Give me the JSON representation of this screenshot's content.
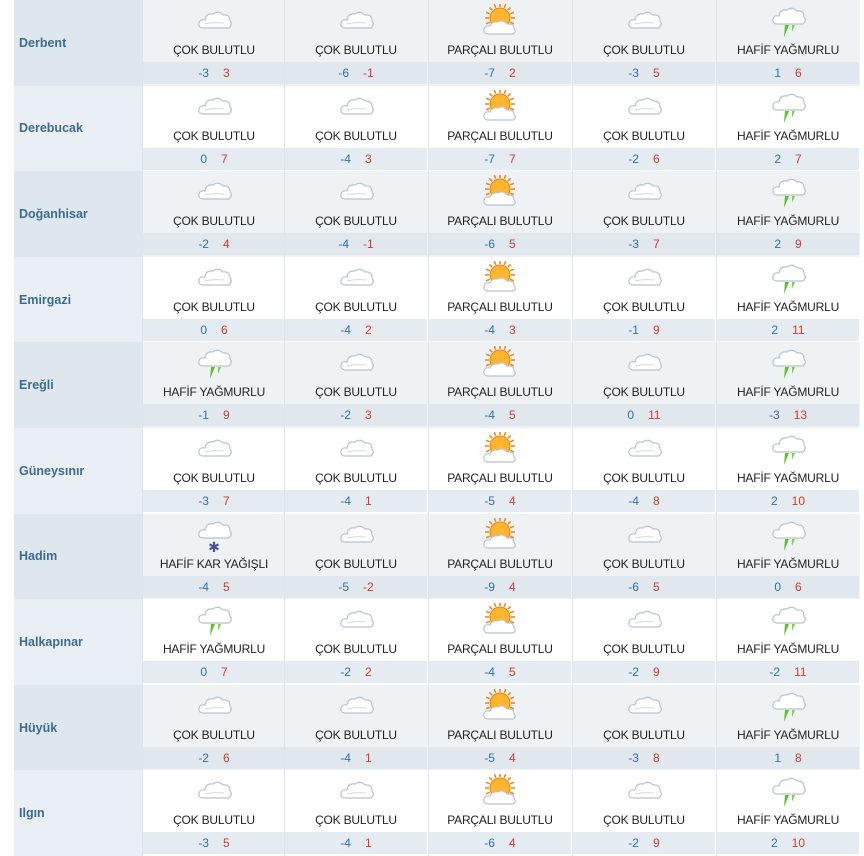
{
  "colors": {
    "min_temp": "#2f6fb5",
    "max_temp": "#d23a2e",
    "city": "#3d6b8f"
  },
  "conditions": {
    "cloudy": {
      "label": "ÇOK BULUTLU",
      "icon": "cloud-icon"
    },
    "partly": {
      "label": "PARÇALI BULUTLU",
      "icon": "sun-cloud-icon"
    },
    "rain": {
      "label": "HAFİF YAĞMURLU",
      "icon": "rain-cloud-icon"
    },
    "snow": {
      "label": "HAFİF KAR YAĞIŞLI",
      "icon": "snow-cloud-icon"
    }
  },
  "rows": [
    {
      "city": "Derbent",
      "days": [
        {
          "cond": "cloudy",
          "label": "ÇOK BULUTLU",
          "min": "-3",
          "max": "3"
        },
        {
          "cond": "cloudy",
          "label": "ÇOK BULUTLU",
          "min": "-6",
          "max": "-1"
        },
        {
          "cond": "partly",
          "label": "PARÇALI BULUTLU",
          "min": "-7",
          "max": "2"
        },
        {
          "cond": "cloudy",
          "label": "ÇOK BULUTLU",
          "min": "-3",
          "max": "5"
        },
        {
          "cond": "rain",
          "label": "HAFİF YAĞMURLU",
          "min": "1",
          "max": "6"
        }
      ]
    },
    {
      "city": "Derebucak",
      "days": [
        {
          "cond": "cloudy",
          "label": "ÇOK BULUTLU",
          "min": "0",
          "max": "7"
        },
        {
          "cond": "cloudy",
          "label": "ÇOK BULUTLU",
          "min": "-4",
          "max": "3"
        },
        {
          "cond": "partly",
          "label": "PARÇALI BULUTLU",
          "min": "-7",
          "max": "7"
        },
        {
          "cond": "cloudy",
          "label": "ÇOK BULUTLU",
          "min": "-2",
          "max": "6"
        },
        {
          "cond": "rain",
          "label": "HAFİF YAĞMURLU",
          "min": "2",
          "max": "7"
        }
      ]
    },
    {
      "city": "Doğanhisar",
      "days": [
        {
          "cond": "cloudy",
          "label": "ÇOK BULUTLU",
          "min": "-2",
          "max": "4"
        },
        {
          "cond": "cloudy",
          "label": "ÇOK BULUTLU",
          "min": "-4",
          "max": "-1"
        },
        {
          "cond": "partly",
          "label": "PARÇALI BULUTLU",
          "min": "-6",
          "max": "5"
        },
        {
          "cond": "cloudy",
          "label": "ÇOK BULUTLU",
          "min": "-3",
          "max": "7"
        },
        {
          "cond": "rain",
          "label": "HAFİF YAĞMURLU",
          "min": "2",
          "max": "9"
        }
      ]
    },
    {
      "city": "Emirgazi",
      "days": [
        {
          "cond": "cloudy",
          "label": "ÇOK BULUTLU",
          "min": "0",
          "max": "6"
        },
        {
          "cond": "cloudy",
          "label": "ÇOK BULUTLU",
          "min": "-4",
          "max": "2"
        },
        {
          "cond": "partly",
          "label": "PARÇALI BULUTLU",
          "min": "-4",
          "max": "3"
        },
        {
          "cond": "cloudy",
          "label": "ÇOK BULUTLU",
          "min": "-1",
          "max": "9"
        },
        {
          "cond": "rain",
          "label": "HAFİF YAĞMURLU",
          "min": "2",
          "max": "11"
        }
      ]
    },
    {
      "city": "Ereğli",
      "days": [
        {
          "cond": "rain",
          "label": "HAFİF YAĞMURLU",
          "min": "-1",
          "max": "9"
        },
        {
          "cond": "cloudy",
          "label": "ÇOK BULUTLU",
          "min": "-2",
          "max": "3"
        },
        {
          "cond": "partly",
          "label": "PARÇALI BULUTLU",
          "min": "-4",
          "max": "5"
        },
        {
          "cond": "cloudy",
          "label": "ÇOK BULUTLU",
          "min": "0",
          "max": "11"
        },
        {
          "cond": "rain",
          "label": "HAFİF YAĞMURLU",
          "min": "-3",
          "max": "13"
        }
      ]
    },
    {
      "city": "Güneysınır",
      "days": [
        {
          "cond": "cloudy",
          "label": "ÇOK BULUTLU",
          "min": "-3",
          "max": "7"
        },
        {
          "cond": "cloudy",
          "label": "ÇOK BULUTLU",
          "min": "-4",
          "max": "1"
        },
        {
          "cond": "partly",
          "label": "PARÇALI BULUTLU",
          "min": "-5",
          "max": "4"
        },
        {
          "cond": "cloudy",
          "label": "ÇOK BULUTLU",
          "min": "-4",
          "max": "8"
        },
        {
          "cond": "rain",
          "label": "HAFİF YAĞMURLU",
          "min": "2",
          "max": "10"
        }
      ]
    },
    {
      "city": "Hadim",
      "days": [
        {
          "cond": "snow",
          "label": "HAFİF KAR YAĞIŞLI",
          "min": "-4",
          "max": "5"
        },
        {
          "cond": "cloudy",
          "label": "ÇOK BULUTLU",
          "min": "-5",
          "max": "-2"
        },
        {
          "cond": "partly",
          "label": "PARÇALI BULUTLU",
          "min": "-9",
          "max": "4"
        },
        {
          "cond": "cloudy",
          "label": "ÇOK BULUTLU",
          "min": "-6",
          "max": "5"
        },
        {
          "cond": "rain",
          "label": "HAFİF YAĞMURLU",
          "min": "0",
          "max": "6"
        }
      ]
    },
    {
      "city": "Halkapınar",
      "days": [
        {
          "cond": "rain",
          "label": "HAFİF YAĞMURLU",
          "min": "0",
          "max": "7"
        },
        {
          "cond": "cloudy",
          "label": "ÇOK BULUTLU",
          "min": "-2",
          "max": "2"
        },
        {
          "cond": "partly",
          "label": "PARÇALI BULUTLU",
          "min": "-4",
          "max": "5"
        },
        {
          "cond": "cloudy",
          "label": "ÇOK BULUTLU",
          "min": "-2",
          "max": "9"
        },
        {
          "cond": "rain",
          "label": "HAFİF YAĞMURLU",
          "min": "-2",
          "max": "11"
        }
      ]
    },
    {
      "city": "Hüyük",
      "days": [
        {
          "cond": "cloudy",
          "label": "ÇOK BULUTLU",
          "min": "-2",
          "max": "6"
        },
        {
          "cond": "cloudy",
          "label": "ÇOK BULUTLU",
          "min": "-4",
          "max": "1"
        },
        {
          "cond": "partly",
          "label": "PARÇALI BULUTLU",
          "min": "-5",
          "max": "4"
        },
        {
          "cond": "cloudy",
          "label": "ÇOK BULUTLU",
          "min": "-3",
          "max": "8"
        },
        {
          "cond": "rain",
          "label": "HAFİF YAĞMURLU",
          "min": "1",
          "max": "8"
        }
      ]
    },
    {
      "city": "Ilgın",
      "days": [
        {
          "cond": "cloudy",
          "label": "ÇOK BULUTLU",
          "min": "-3",
          "max": "5"
        },
        {
          "cond": "cloudy",
          "label": "ÇOK BULUTLU",
          "min": "-4",
          "max": "1"
        },
        {
          "cond": "partly",
          "label": "PARÇALI BULUTLU",
          "min": "-6",
          "max": "4"
        },
        {
          "cond": "cloudy",
          "label": "ÇOK BULUTLU",
          "min": "-2",
          "max": "9"
        },
        {
          "cond": "rain",
          "label": "HAFİF YAĞMURLU",
          "min": "2",
          "max": "10"
        }
      ]
    }
  ]
}
